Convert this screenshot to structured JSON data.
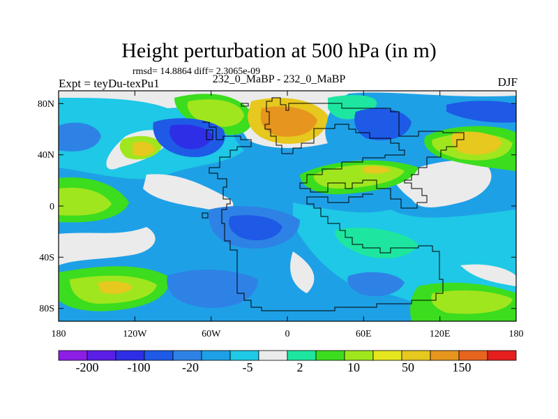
{
  "title": "Height perturbation at 500 hPa (in m)",
  "stats_line": "rmsd= 14.8864 diff= 2.3065e-09",
  "left_label": "Expt = teyDu-texPu1",
  "center_label": "232_0_MaBP - 232_0_MaBP",
  "right_label": "DJF",
  "map": {
    "projection": "cylindrical-equidistant",
    "lon_range": [
      -180,
      180
    ],
    "lat_range": [
      -90,
      90
    ],
    "x_tick_labels": [
      "180",
      "120W",
      "60W",
      "0",
      "60E",
      "120E",
      "180"
    ],
    "y_tick_labels": [
      "80N",
      "40N",
      "0",
      "40S",
      "80S"
    ]
  },
  "colorbar": {
    "colors": [
      "#8C1EE6",
      "#5A1EE6",
      "#2E2EE6",
      "#1E5AE6",
      "#2E82E6",
      "#1EA0E6",
      "#1EC8E6",
      "#EBEBEB",
      "#1EE6A0",
      "#3CDC1E",
      "#A0E61E",
      "#E6E61E",
      "#E6C81E",
      "#E6961E",
      "#E6641E",
      "#E61E1E"
    ],
    "labels": [
      "-200",
      "-100",
      "-20",
      "-5",
      "2",
      "10",
      "50",
      "150"
    ]
  }
}
